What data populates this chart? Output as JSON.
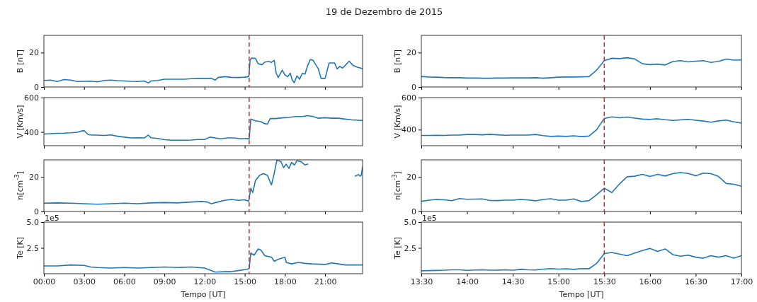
{
  "chart_data": [
    {
      "type": "line",
      "title": "19 de Dezembro de 2015",
      "ylabel": "B [nT]",
      "tick_labels": "y",
      "x": [
        0,
        0.5,
        1,
        1.5,
        2,
        2.5,
        3,
        3.5,
        4,
        4.5,
        5,
        5.5,
        6,
        6.5,
        7,
        7.5,
        7.8,
        8,
        8.5,
        9,
        9.5,
        10,
        10.5,
        11,
        11.5,
        12,
        12.5,
        12.8,
        13,
        13.5,
        14,
        14.5,
        15,
        15.3,
        15.4,
        15.5,
        15.8,
        16,
        16.3,
        16.5,
        16.8,
        17,
        17.2,
        17.35,
        17.5,
        17.8,
        18,
        18.2,
        18.4,
        18.55,
        18.7,
        18.9,
        19.1,
        19.3,
        19.5,
        19.7,
        19.9,
        20.1,
        20.3,
        20.5,
        20.7,
        21,
        21.3,
        21.7,
        21.9,
        22.1,
        22.3,
        22.5,
        22.8,
        23.1,
        23.4,
        23.8
      ],
      "series": [
        {
          "color": "#1f77b4",
          "values": [
            3.8,
            4.0,
            3.2,
            4.3,
            4.0,
            3.2,
            3.3,
            3.4,
            3.0,
            3.8,
            4.0,
            3.7,
            3.5,
            3.3,
            3.2,
            3.5,
            2.3,
            3.5,
            3.8,
            4.5,
            4.5,
            4.5,
            4.5,
            4.8,
            5.0,
            5.0,
            5.0,
            4.0,
            5.5,
            6.0,
            5.6,
            5.5,
            5.7,
            6.0,
            15.5,
            16.8,
            16.6,
            13.5,
            13.0,
            14.5,
            14.8,
            14.3,
            15.5,
            8.0,
            5.5,
            9.8,
            7.0,
            6.0,
            8.0,
            4.0,
            2.5,
            6.5,
            4.5,
            8.0,
            7.5,
            12.5,
            16.0,
            15.5,
            13.0,
            10.5,
            5.0,
            5.0,
            14.0,
            14.0,
            10.5,
            12.0,
            11.0,
            12.5,
            15.0,
            12.5,
            11.5,
            10.7
          ]
        }
      ],
      "xlim": [
        0,
        23.8
      ],
      "xticks": [
        {
          "value": 0,
          "label": null
        },
        {
          "value": 3,
          "label": null
        },
        {
          "value": 6,
          "label": null
        },
        {
          "value": 9,
          "label": null
        },
        {
          "value": 12,
          "label": null
        },
        {
          "value": 15,
          "label": null
        },
        {
          "value": 18,
          "label": null
        },
        {
          "value": 21,
          "label": null
        }
      ],
      "ylim": [
        0,
        30
      ],
      "yticks": [
        0,
        20
      ],
      "ref_lines": [
        {
          "axis": "x",
          "value": 15.33,
          "color": "#d62728",
          "line_style": "dashed"
        }
      ]
    },
    {
      "type": "line",
      "ylabel": "B [nT]",
      "tick_labels": "y",
      "x": [
        13.5,
        13.5833,
        13.6667,
        13.75,
        13.8333,
        13.9167,
        14,
        14.0833,
        14.1667,
        14.25,
        14.3333,
        14.4167,
        14.5,
        14.5833,
        14.6667,
        14.75,
        14.8333,
        14.9167,
        15,
        15.0833,
        15.1667,
        15.25,
        15.3333,
        15.4167,
        15.5,
        15.5833,
        15.6667,
        15.75,
        15.8333,
        15.9167,
        16,
        16.0833,
        16.1667,
        16.25,
        16.3333,
        16.4167,
        16.5,
        16.5833,
        16.6667,
        16.75,
        16.8333,
        16.9167,
        17
      ],
      "series": [
        {
          "color": "#1f77b4",
          "values": [
            6.1,
            5.8,
            5.7,
            5.5,
            5.4,
            5.4,
            5.2,
            5.2,
            5.1,
            5.1,
            5.2,
            5.2,
            5.3,
            5.3,
            5.3,
            5.4,
            5.1,
            5.4,
            5.7,
            5.8,
            5.8,
            5.9,
            6.0,
            9.8,
            15.3,
            16.7,
            16.5,
            17.0,
            16.3,
            13.5,
            13.0,
            13.3,
            12.8,
            14.8,
            15.3,
            14.6,
            15.0,
            15.3,
            14.3,
            14.9,
            16.2,
            15.6,
            15.7
          ]
        }
      ],
      "xlim": [
        13.5,
        17
      ],
      "xticks": [
        {
          "value": 13.5,
          "label": null
        },
        {
          "value": 14,
          "label": null
        },
        {
          "value": 14.5,
          "label": null
        },
        {
          "value": 15,
          "label": null
        },
        {
          "value": 15.5,
          "label": null
        },
        {
          "value": 16,
          "label": null
        },
        {
          "value": 16.5,
          "label": null
        },
        {
          "value": 17,
          "label": null
        }
      ],
      "ylim": [
        0,
        30
      ],
      "yticks": [
        0,
        20
      ],
      "ref_lines": [
        {
          "axis": "x",
          "value": 15.5,
          "color": "#d62728",
          "line_style": "dashed"
        }
      ]
    },
    {
      "type": "line",
      "ylabel": "V [Km/s]",
      "tick_labels": "y",
      "x": [
        0,
        0.5,
        1,
        1.5,
        2,
        2.5,
        2.8,
        3.0,
        3.3,
        3.6,
        4,
        4.5,
        5,
        5.5,
        6,
        6.5,
        7,
        7.5,
        7.8,
        8,
        8.5,
        9,
        9.5,
        10,
        10.5,
        11,
        11.5,
        12,
        12.4,
        12.8,
        13.2,
        13.7,
        14.2,
        14.7,
        15.2,
        15.33,
        15.45,
        15.8,
        16.2,
        16.5,
        16.7,
        16.9,
        17.3,
        17.8,
        18.3,
        18.8,
        19.3,
        19.7,
        20.1,
        20.5,
        21,
        21.5,
        22,
        22.5,
        23,
        23.8
      ],
      "series": [
        {
          "color": "#1f77b4",
          "values": [
            388,
            390,
            392,
            393,
            395,
            398,
            405,
            408,
            385,
            382,
            382,
            380,
            383,
            375,
            370,
            365,
            366,
            365,
            382,
            366,
            362,
            355,
            352,
            352,
            352,
            353,
            356,
            356,
            370,
            365,
            360,
            365,
            365,
            360,
            362,
            358,
            475,
            465,
            460,
            448,
            446,
            478,
            478,
            482,
            485,
            490,
            490,
            495,
            490,
            480,
            483,
            480,
            480,
            475,
            470,
            467
          ]
        }
      ],
      "xlim": [
        0,
        23.8
      ],
      "xticks": [
        {
          "value": 0,
          "label": null
        },
        {
          "value": 3,
          "label": null
        },
        {
          "value": 6,
          "label": null
        },
        {
          "value": 9,
          "label": null
        },
        {
          "value": 12,
          "label": null
        },
        {
          "value": 15,
          "label": null
        },
        {
          "value": 18,
          "label": null
        },
        {
          "value": 21,
          "label": null
        }
      ],
      "ylim": [
        320,
        600
      ],
      "yticks": [
        400,
        600
      ],
      "ref_lines": [
        {
          "axis": "x",
          "value": 15.33,
          "color": "#d62728",
          "line_style": "dashed"
        }
      ]
    },
    {
      "type": "line",
      "ylabel": "V [Km/s]",
      "tick_labels": "y",
      "x": [
        13.5,
        13.5833,
        13.6667,
        13.75,
        13.8333,
        13.9167,
        14,
        14.0833,
        14.1667,
        14.25,
        14.3333,
        14.4167,
        14.5,
        14.5833,
        14.6667,
        14.75,
        14.8333,
        14.9167,
        15,
        15.0833,
        15.1667,
        15.25,
        15.3333,
        15.4167,
        15.5,
        15.5833,
        15.6667,
        15.75,
        15.8333,
        15.9167,
        16,
        16.0833,
        16.1667,
        16.25,
        16.3333,
        16.4167,
        16.5,
        16.5833,
        16.6667,
        16.75,
        16.8333,
        16.9167,
        17
      ],
      "series": [
        {
          "color": "#1f77b4",
          "values": [
            364,
            364,
            365,
            364,
            366,
            366,
            370,
            370,
            368,
            371,
            368,
            365,
            366,
            366,
            366,
            370,
            363,
            358,
            360,
            358,
            362,
            357,
            360,
            400,
            470,
            480,
            474,
            479,
            472,
            466,
            464,
            468,
            462,
            458,
            461,
            464,
            459,
            454,
            447,
            455,
            460,
            449,
            441
          ]
        }
      ],
      "xlim": [
        13.5,
        17
      ],
      "xticks": [
        {
          "value": 13.5,
          "label": null
        },
        {
          "value": 14,
          "label": null
        },
        {
          "value": 14.5,
          "label": null
        },
        {
          "value": 15,
          "label": null
        },
        {
          "value": 15.5,
          "label": null
        },
        {
          "value": 16,
          "label": null
        },
        {
          "value": 16.5,
          "label": null
        },
        {
          "value": 17,
          "label": null
        }
      ],
      "ylim": [
        300,
        600
      ],
      "yticks": [
        400,
        600
      ],
      "ref_lines": [
        {
          "axis": "x",
          "value": 15.5,
          "color": "#d62728",
          "line_style": "dashed"
        }
      ]
    },
    {
      "type": "line",
      "ylabel": "n[cm$^{-3}$]",
      "tick_labels": "y",
      "x": [
        0,
        1,
        2,
        3,
        4,
        5,
        6,
        7,
        8,
        9,
        10,
        11,
        11.8,
        12.2,
        12.5,
        13,
        13.5,
        14,
        14.5,
        15,
        15.3,
        15.45,
        15.6,
        15.8,
        16.1,
        16.4,
        16.7,
        16.9,
        17.0,
        17.2,
        17.4,
        17.7,
        17.9,
        18.1,
        18.3,
        18.5,
        18.7,
        18.9,
        19.2,
        19.5,
        19.7,
        20,
        23.25,
        23.5,
        23.6,
        23.7,
        23.8
      ],
      "series": [
        {
          "color": "#1f77b4",
          "values": [
            4.8,
            5.0,
            4.8,
            4.5,
            4.2,
            4.5,
            4.8,
            4.5,
            5.0,
            5.2,
            5.0,
            5.5,
            5.8,
            5.5,
            4.5,
            5.5,
            6.5,
            7.0,
            6.5,
            6.8,
            6.0,
            13.5,
            11,
            18,
            21,
            22,
            21,
            17,
            15.5,
            22,
            29.8,
            29.0,
            25.5,
            27.5,
            25.0,
            28.5,
            27.0,
            29.5,
            29.0,
            27.0,
            27.5,
            null,
            20.5,
            21.5,
            20.5,
            21,
            26
          ]
        }
      ],
      "xlim": [
        0,
        23.8
      ],
      "xticks": [
        {
          "value": 0,
          "label": null
        },
        {
          "value": 3,
          "label": null
        },
        {
          "value": 6,
          "label": null
        },
        {
          "value": 9,
          "label": null
        },
        {
          "value": 12,
          "label": null
        },
        {
          "value": 15,
          "label": null
        },
        {
          "value": 18,
          "label": null
        },
        {
          "value": 21,
          "label": null
        }
      ],
      "ylim": [
        0,
        30
      ],
      "yticks": [
        0,
        20
      ],
      "ref_lines": [
        {
          "axis": "x",
          "value": 15.33,
          "color": "#d62728",
          "line_style": "dashed"
        }
      ]
    },
    {
      "type": "line",
      "ylabel": "n[cm$^{-3}$]",
      "tick_labels": "y",
      "x": [
        13.5,
        13.5833,
        13.6667,
        13.75,
        13.8333,
        13.9167,
        14,
        14.0833,
        14.1667,
        14.25,
        14.3333,
        14.4167,
        14.5,
        14.5833,
        14.6667,
        14.75,
        14.8333,
        14.9167,
        15,
        15.0833,
        15.1667,
        15.25,
        15.3333,
        15.4167,
        15.5,
        15.5833,
        15.6667,
        15.75,
        15.8333,
        15.9167,
        16,
        16.0833,
        16.1667,
        16.25,
        16.3333,
        16.4167,
        16.5,
        16.5833,
        16.6667,
        16.75,
        16.8333,
        16.9167,
        17
      ],
      "series": [
        {
          "color": "#1f77b4",
          "values": [
            5.9,
            6.6,
            7.0,
            6.8,
            6.3,
            7.5,
            7.1,
            7.2,
            7.3,
            6.4,
            6.3,
            6.6,
            6.6,
            7.0,
            6.7,
            6.2,
            7.0,
            7.4,
            6.6,
            6.6,
            7.3,
            5.8,
            6.3,
            9.7,
            13.5,
            11.0,
            16.0,
            20.2,
            20.5,
            21.6,
            20.3,
            21.6,
            20.6,
            22.0,
            22.6,
            22.1,
            20.8,
            22.3,
            22.0,
            20.3,
            16.3,
            15.8,
            14.7
          ]
        }
      ],
      "xlim": [
        13.5,
        17
      ],
      "xticks": [
        {
          "value": 13.5,
          "label": null
        },
        {
          "value": 14,
          "label": null
        },
        {
          "value": 14.5,
          "label": null
        },
        {
          "value": 15,
          "label": null
        },
        {
          "value": 15.5,
          "label": null
        },
        {
          "value": 16,
          "label": null
        },
        {
          "value": 16.5,
          "label": null
        },
        {
          "value": 17,
          "label": null
        }
      ],
      "ylim": [
        0,
        30
      ],
      "yticks": [
        0,
        20
      ],
      "ref_lines": [
        {
          "axis": "x",
          "value": 15.5,
          "color": "#d62728",
          "line_style": "dashed"
        }
      ]
    },
    {
      "type": "line",
      "ylabel": "Te [K]",
      "xlabel": "Tempo [UT]",
      "annotations": [
        "1e5"
      ],
      "x": [
        0,
        1,
        2,
        3,
        3.5,
        4,
        5,
        6,
        7,
        8,
        9,
        10,
        11,
        12,
        12.5,
        12.8,
        13.5,
        14,
        14.5,
        15.2,
        15.33,
        15.45,
        15.7,
        16,
        16.2,
        16.5,
        17,
        17.2,
        17.5,
        18,
        18.1,
        18.5,
        19,
        19.5,
        20,
        21,
        21.5,
        22,
        22.5,
        23,
        23.8
      ],
      "series": [
        {
          "color": "#1f77b4",
          "values": [
            0.75,
            0.75,
            0.85,
            0.8,
            0.65,
            0.6,
            0.55,
            0.6,
            0.55,
            0.6,
            0.65,
            0.6,
            0.65,
            0.55,
            0.3,
            0.15,
            0.2,
            0.2,
            0.3,
            0.45,
            0.5,
            2.0,
            1.8,
            2.4,
            2.3,
            1.75,
            1.6,
            1.2,
            1.4,
            1.6,
            1.1,
            0.95,
            1.1,
            1.0,
            0.95,
            0.9,
            1.05,
            0.95,
            0.85,
            0.85,
            0.85
          ]
        }
      ],
      "xlim": [
        0,
        23.8
      ],
      "xticks": [
        {
          "value": 0,
          "label": "00:00"
        },
        {
          "value": 3,
          "label": "03:00"
        },
        {
          "value": 6,
          "label": "06:00"
        },
        {
          "value": 9,
          "label": "09:00"
        },
        {
          "value": 12,
          "label": "12:00"
        },
        {
          "value": 15,
          "label": "15:00"
        },
        {
          "value": 18,
          "label": "18:00"
        },
        {
          "value": 21,
          "label": "21:00"
        }
      ],
      "ylim": [
        0,
        5
      ],
      "yticks": [
        2.5,
        {
          "value": 5,
          "label": "5.0"
        }
      ],
      "ref_lines": [
        {
          "axis": "x",
          "value": 15.33,
          "color": "#d62728",
          "line_style": "dashed"
        }
      ]
    },
    {
      "type": "line",
      "ylabel": "Te [K]",
      "xlabel": "Tempo [UT]",
      "annotations": [
        "1e5"
      ],
      "x": [
        13.5,
        13.5833,
        13.6667,
        13.75,
        13.8333,
        13.9167,
        14,
        14.0833,
        14.1667,
        14.25,
        14.3333,
        14.4167,
        14.5,
        14.5833,
        14.6667,
        14.75,
        14.8333,
        14.9167,
        15,
        15.0833,
        15.1667,
        15.25,
        15.3333,
        15.4167,
        15.5,
        15.5833,
        15.6667,
        15.75,
        15.8333,
        15.9167,
        16,
        16.0833,
        16.1667,
        16.25,
        16.3333,
        16.4167,
        16.5,
        16.5833,
        16.6667,
        16.75,
        16.8333,
        16.9167,
        17
      ],
      "series": [
        {
          "color": "#1f77b4",
          "values": [
            0.28,
            0.3,
            0.32,
            0.34,
            0.38,
            0.38,
            0.33,
            0.36,
            0.38,
            0.34,
            0.35,
            0.38,
            0.34,
            0.42,
            0.38,
            0.36,
            0.45,
            0.5,
            0.45,
            0.48,
            0.42,
            0.5,
            0.48,
            1.0,
            1.95,
            2.05,
            1.9,
            1.75,
            2.0,
            2.25,
            2.45,
            2.15,
            2.4,
            1.85,
            1.7,
            1.8,
            1.6,
            1.5,
            1.75,
            1.6,
            1.75,
            1.5,
            1.75
          ]
        }
      ],
      "xlim": [
        13.5,
        17
      ],
      "xticks": [
        {
          "value": 13.5,
          "label": "13:30"
        },
        {
          "value": 14,
          "label": "14:00"
        },
        {
          "value": 14.5,
          "label": "14:30"
        },
        {
          "value": 15,
          "label": "15:00"
        },
        {
          "value": 15.5,
          "label": "15:30"
        },
        {
          "value": 16,
          "label": "16:00"
        },
        {
          "value": 16.5,
          "label": "16:30"
        },
        {
          "value": 17,
          "label": "17:00"
        }
      ],
      "ylim": [
        0,
        5
      ],
      "yticks": [
        2.5,
        {
          "value": 5,
          "label": "5.0"
        }
      ],
      "ref_lines": [
        {
          "axis": "x",
          "value": 15.5,
          "color": "#d62728",
          "line_style": "dashed"
        }
      ]
    }
  ]
}
